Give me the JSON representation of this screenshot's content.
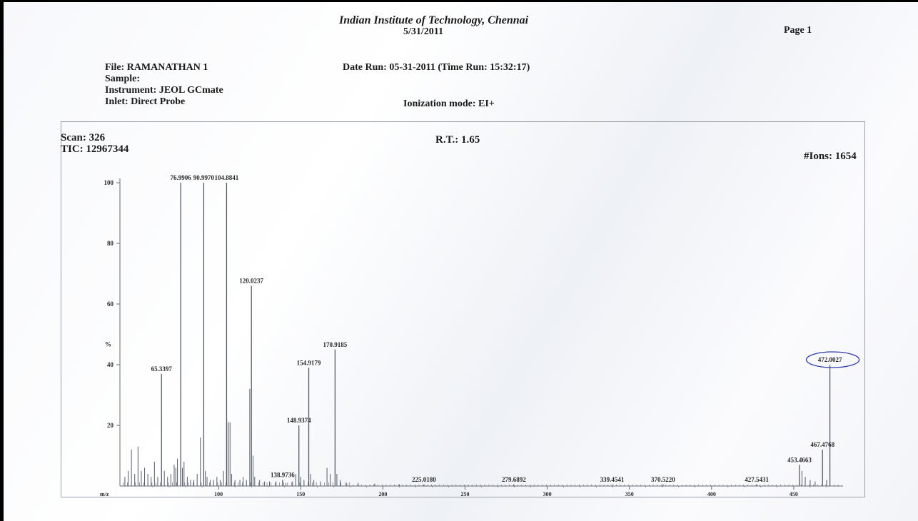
{
  "header": {
    "institute": "Indian Institute of Technology, Chennai",
    "print_date": "5/31/2011",
    "page": "Page 1"
  },
  "meta": {
    "file": "File: RAMANATHAN  1",
    "sample": "Sample:",
    "instrument": "Instrument: JEOL GCmate",
    "inlet": "Inlet: Direct Probe",
    "date_run": "Date Run: 05-31-2011 (Time Run: 15:32:17)",
    "ionization": "Ionization mode: EI+"
  },
  "scan_info": {
    "scan": "Scan: 326",
    "tic": "TIC: 12967344",
    "rt": "R.T.: 1.65",
    "ions": "#Ions: 1654"
  },
  "chart_data": {
    "type": "bar",
    "xlabel": "m/z",
    "ylabel": "%",
    "xlim": [
      40,
      480
    ],
    "ylim": [
      0,
      100
    ],
    "xticks": [
      100,
      150,
      200,
      250,
      300,
      350,
      400,
      450
    ],
    "yticks": [
      20,
      40,
      60,
      80,
      100
    ],
    "colors": {
      "peak": "#555c66",
      "axis": "#666c75",
      "label": "#2a2a2a",
      "highlight": "#2b3aa8"
    },
    "labeled_peaks": [
      {
        "mz": "65.3397",
        "x": 65.3,
        "y": 37
      },
      {
        "mz": "76.9906",
        "x": 77.0,
        "y": 100
      },
      {
        "mz": "90.9970",
        "x": 91.0,
        "y": 100
      },
      {
        "mz": "104.8841",
        "x": 104.9,
        "y": 100
      },
      {
        "mz": "120.0237",
        "x": 120.0,
        "y": 66
      },
      {
        "mz": "138.9736",
        "x": 139.0,
        "y": 2
      },
      {
        "mz": "148.9374",
        "x": 148.9,
        "y": 20
      },
      {
        "mz": "154.9179",
        "x": 154.9,
        "y": 39
      },
      {
        "mz": "170.9185",
        "x": 170.9,
        "y": 45
      },
      {
        "mz": "225.0180",
        "x": 225.0,
        "y": 0.5
      },
      {
        "mz": "279.6892",
        "x": 279.7,
        "y": 0.5
      },
      {
        "mz": "339.4541",
        "x": 339.5,
        "y": 0.5
      },
      {
        "mz": "370.5220",
        "x": 370.5,
        "y": 0.5
      },
      {
        "mz": "427.5431",
        "x": 427.5,
        "y": 0.5
      },
      {
        "mz": "453.4663",
        "x": 453.5,
        "y": 7
      },
      {
        "mz": "467.4768",
        "x": 467.5,
        "y": 12
      },
      {
        "mz": "472.0027",
        "x": 472.0,
        "y": 40,
        "circled": true
      }
    ],
    "minor_peaks": [
      [
        43,
        3
      ],
      [
        45,
        5
      ],
      [
        47,
        12
      ],
      [
        49,
        4
      ],
      [
        51,
        13
      ],
      [
        53,
        5
      ],
      [
        55,
        6
      ],
      [
        57,
        4
      ],
      [
        59,
        3
      ],
      [
        61,
        8
      ],
      [
        63,
        3
      ],
      [
        67,
        5
      ],
      [
        69,
        3
      ],
      [
        71,
        4
      ],
      [
        73,
        7
      ],
      [
        74,
        6
      ],
      [
        75,
        9
      ],
      [
        78,
        6
      ],
      [
        79,
        8
      ],
      [
        81,
        3
      ],
      [
        83,
        2
      ],
      [
        85,
        2
      ],
      [
        87,
        4
      ],
      [
        89,
        16
      ],
      [
        92,
        5
      ],
      [
        93,
        3
      ],
      [
        95,
        2
      ],
      [
        97,
        2
      ],
      [
        99,
        3
      ],
      [
        101,
        2
      ],
      [
        103,
        5
      ],
      [
        105,
        22
      ],
      [
        106,
        21
      ],
      [
        107,
        21
      ],
      [
        108,
        4
      ],
      [
        110,
        2
      ],
      [
        113,
        2
      ],
      [
        115,
        3
      ],
      [
        117,
        2
      ],
      [
        119,
        32
      ],
      [
        121,
        10
      ],
      [
        122,
        3
      ],
      [
        125,
        2
      ],
      [
        128,
        1.5
      ],
      [
        131,
        1.5
      ],
      [
        135,
        1.5
      ],
      [
        141,
        1
      ],
      [
        145,
        1.5
      ],
      [
        147,
        4
      ],
      [
        150,
        3
      ],
      [
        152,
        2
      ],
      [
        156,
        4
      ],
      [
        158,
        2
      ],
      [
        162,
        1.5
      ],
      [
        166,
        6
      ],
      [
        168,
        4
      ],
      [
        172,
        4
      ],
      [
        174,
        2
      ],
      [
        178,
        1
      ],
      [
        185,
        1
      ],
      [
        195,
        0.8
      ],
      [
        210,
        0.6
      ],
      [
        455,
        5
      ],
      [
        457,
        3
      ],
      [
        460,
        2
      ],
      [
        463,
        1.5
      ],
      [
        470,
        2
      ]
    ]
  }
}
